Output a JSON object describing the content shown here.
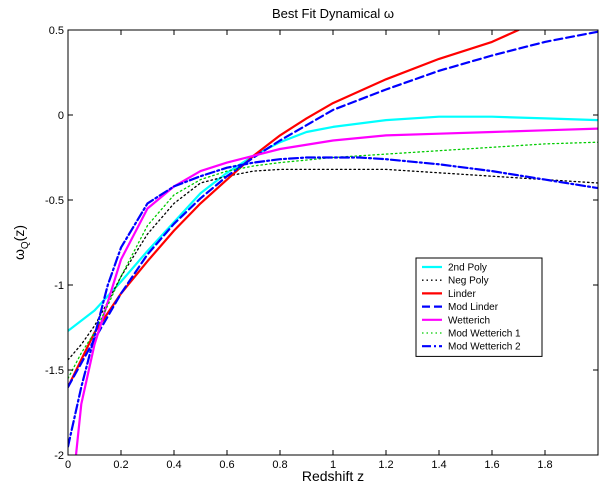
{
  "chart_data": {
    "type": "line",
    "title": "Best Fit Dynamical ω",
    "xlabel": "Redshift z",
    "ylabel_main": "ω",
    "ylabel_sub": "Q",
    "ylabel_tail": "(z)",
    "xlim": [
      0,
      2
    ],
    "ylim": [
      -2,
      0.5
    ],
    "xticks": [
      0,
      0.2,
      0.4,
      0.6,
      0.8,
      1,
      1.2,
      1.4,
      1.6,
      1.8
    ],
    "xtick_labels": [
      "0",
      "0.2",
      "0.4",
      "0.6",
      "0.8",
      "1",
      "1.2",
      "1.4",
      "1.6",
      "1.8"
    ],
    "yticks": [
      -2,
      -1.5,
      -1,
      -0.5,
      0,
      0.5
    ],
    "ytick_labels": [
      "-2",
      "-1.5",
      "-1",
      "-0.5",
      "0",
      "0.5"
    ],
    "grid": false,
    "legend_position": "right",
    "series": [
      {
        "name": "2nd Poly",
        "color": "#00ffff",
        "dash": "solid",
        "x": [
          0,
          0.1,
          0.2,
          0.3,
          0.4,
          0.5,
          0.6,
          0.7,
          0.8,
          0.9,
          1.0,
          1.2,
          1.4,
          1.6,
          1.8,
          2.0
        ],
        "y": [
          -1.27,
          -1.15,
          -0.98,
          -0.8,
          -0.63,
          -0.46,
          -0.34,
          -0.24,
          -0.16,
          -0.1,
          -0.07,
          -0.03,
          -0.01,
          -0.01,
          -0.02,
          -0.03
        ]
      },
      {
        "name": "Neg Poly",
        "color": "#000000",
        "dash": "dotted",
        "x": [
          0,
          0.05,
          0.1,
          0.15,
          0.2,
          0.3,
          0.4,
          0.5,
          0.6,
          0.7,
          0.8,
          1.0,
          1.2,
          1.4,
          1.6,
          1.8,
          2.0
        ],
        "y": [
          -1.44,
          -1.35,
          -1.24,
          -1.1,
          -0.95,
          -0.7,
          -0.52,
          -0.4,
          -0.36,
          -0.33,
          -0.32,
          -0.32,
          -0.32,
          -0.34,
          -0.36,
          -0.38,
          -0.4
        ]
      },
      {
        "name": "Linder",
        "color": "#ff0000",
        "dash": "solid",
        "x": [
          0,
          0.1,
          0.2,
          0.3,
          0.4,
          0.5,
          0.6,
          0.7,
          0.8,
          0.9,
          1.0,
          1.2,
          1.4,
          1.6,
          1.7
        ],
        "y": [
          -1.6,
          -1.28,
          -1.05,
          -0.86,
          -0.68,
          -0.52,
          -0.38,
          -0.24,
          -0.12,
          -0.02,
          0.07,
          0.21,
          0.33,
          0.43,
          0.5
        ]
      },
      {
        "name": "Mod Linder",
        "color": "#0000ff",
        "dash": "dashed",
        "x": [
          0,
          0.1,
          0.2,
          0.3,
          0.4,
          0.5,
          0.6,
          0.7,
          0.8,
          0.9,
          1.0,
          1.2,
          1.4,
          1.6,
          1.8,
          2.0
        ],
        "y": [
          -1.6,
          -1.32,
          -1.05,
          -0.82,
          -0.64,
          -0.49,
          -0.36,
          -0.25,
          -0.15,
          -0.06,
          0.03,
          0.15,
          0.26,
          0.35,
          0.43,
          0.49
        ]
      },
      {
        "name": "Wetterich",
        "color": "#ff00ff",
        "dash": "solid",
        "x": [
          0.03,
          0.05,
          0.1,
          0.15,
          0.2,
          0.3,
          0.4,
          0.5,
          0.6,
          0.7,
          0.8,
          1.0,
          1.2,
          1.4,
          1.6,
          1.8,
          2.0
        ],
        "y": [
          -2.0,
          -1.7,
          -1.35,
          -1.1,
          -0.85,
          -0.55,
          -0.42,
          -0.33,
          -0.28,
          -0.24,
          -0.2,
          -0.15,
          -0.12,
          -0.11,
          -0.1,
          -0.09,
          -0.08
        ]
      },
      {
        "name": "Mod Wetterich 1",
        "color": "#00cc00",
        "dash": "dotted",
        "x": [
          0,
          0.05,
          0.1,
          0.15,
          0.2,
          0.3,
          0.4,
          0.5,
          0.6,
          0.7,
          0.8,
          1.0,
          1.2,
          1.4,
          1.6,
          1.8,
          2.0
        ],
        "y": [
          -1.55,
          -1.4,
          -1.28,
          -1.12,
          -0.95,
          -0.65,
          -0.47,
          -0.38,
          -0.33,
          -0.3,
          -0.28,
          -0.25,
          -0.23,
          -0.21,
          -0.19,
          -0.17,
          -0.16
        ]
      },
      {
        "name": "Mod Wetterich 2",
        "color": "#0000ff",
        "dash": "dashdot",
        "x": [
          0,
          0.05,
          0.1,
          0.15,
          0.2,
          0.3,
          0.4,
          0.5,
          0.6,
          0.7,
          0.8,
          0.9,
          1.0,
          1.1,
          1.2,
          1.4,
          1.6,
          1.8,
          2.0
        ],
        "y": [
          -1.95,
          -1.6,
          -1.3,
          -1.0,
          -0.78,
          -0.52,
          -0.42,
          -0.36,
          -0.31,
          -0.28,
          -0.26,
          -0.25,
          -0.25,
          -0.25,
          -0.26,
          -0.29,
          -0.33,
          -0.38,
          -0.43
        ]
      }
    ]
  }
}
